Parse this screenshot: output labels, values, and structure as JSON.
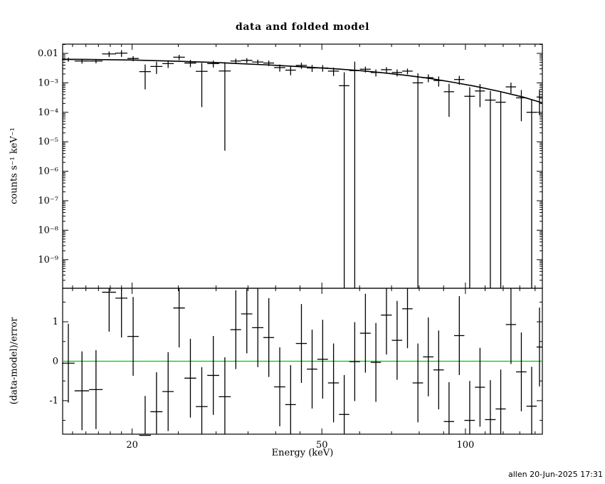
{
  "footer": {
    "timestamp": "allen 20-Jun-2025 17:31"
  },
  "chart_data": {
    "type": "scatter",
    "title": "data and folded model",
    "xlabel": "Energy (keV)",
    "x_ticks_major": [
      20,
      50,
      100
    ],
    "x_tick_labels": [
      "20",
      "50",
      "100"
    ],
    "x_ticks_minor": [
      15,
      16,
      17,
      18,
      19,
      25,
      30,
      35,
      40,
      45,
      60,
      70,
      80,
      90,
      110,
      120,
      130,
      140
    ],
    "xlim": [
      14.3,
      145
    ],
    "grid": false,
    "legend": "none",
    "colors": {
      "data": "#000000",
      "model": "#000000",
      "zero_line": "#00c800"
    },
    "panels": [
      {
        "name": "spectrum",
        "ylabel": "counts s⁻¹ keV⁻¹",
        "xscale": "log",
        "yscale": "log",
        "ylim": [
          1.07e-10,
          0.0206
        ],
        "y_ticks_major": [
          0.01,
          0.001,
          0.0001,
          1e-05,
          1e-06,
          1e-07,
          1e-08,
          1e-09
        ],
        "y_tick_labels": [
          "0.01",
          "10⁻³",
          "10⁻⁴",
          "10⁻⁵",
          "10⁻⁶",
          "10⁻⁷",
          "10⁻⁸",
          "10⁻⁹"
        ],
        "data_points": [
          {
            "e": 14.7,
            "de": 0.45,
            "rate": 0.0062,
            "err": 0.001
          },
          {
            "e": 15.7,
            "de": 0.55,
            "rate": 0.0055,
            "err": 0.001
          },
          {
            "e": 16.8,
            "de": 0.55,
            "rate": 0.0055,
            "err": 0.0009
          },
          {
            "e": 17.9,
            "de": 0.6,
            "rate": 0.0096,
            "err": 0.002
          },
          {
            "e": 19.0,
            "de": 0.55,
            "rate": 0.0102,
            "err": 0.0026
          },
          {
            "e": 20.1,
            "de": 0.55,
            "rate": 0.0067,
            "err": 0.0013
          },
          {
            "e": 21.3,
            "de": 0.6,
            "rate": 0.0024,
            "err": 0.0018
          },
          {
            "e": 22.5,
            "de": 0.65,
            "rate": 0.0036,
            "err": 0.0016
          },
          {
            "e": 23.8,
            "de": 0.65,
            "rate": 0.0045,
            "err": 0.0013
          },
          {
            "e": 25.1,
            "de": 0.7,
            "rate": 0.0074,
            "err": 0.0015
          },
          {
            "e": 26.5,
            "de": 0.75,
            "rate": 0.0047,
            "err": 0.0013
          },
          {
            "e": 28.0,
            "de": 0.8,
            "rate": 0.00245,
            "err": 0.0023
          },
          {
            "e": 29.6,
            "de": 0.85,
            "rate": 0.0045,
            "err": 0.0012
          },
          {
            "e": 31.3,
            "de": 0.9,
            "rate": 0.00252,
            "err": 0.002515
          },
          {
            "e": 33.0,
            "de": 0.85,
            "rate": 0.0055,
            "err": 0.0011
          },
          {
            "e": 34.8,
            "de": 0.95,
            "rate": 0.0058,
            "err": 0.0011
          },
          {
            "e": 36.7,
            "de": 1.0,
            "rate": 0.0051,
            "err": 0.001
          },
          {
            "e": 38.7,
            "de": 1.0,
            "rate": 0.0047,
            "err": 0.001
          },
          {
            "e": 40.8,
            "de": 1.1,
            "rate": 0.0033,
            "err": 0.0009
          },
          {
            "e": 43.0,
            "de": 1.1,
            "rate": 0.0027,
            "err": 0.0009
          },
          {
            "e": 45.3,
            "de": 1.2,
            "rate": 0.0039,
            "err": 0.0009
          },
          {
            "e": 47.7,
            "de": 1.2,
            "rate": 0.0032,
            "err": 0.00085
          },
          {
            "e": 50.2,
            "de": 1.3,
            "rate": 0.0032,
            "err": 0.0008
          },
          {
            "e": 52.9,
            "de": 1.4,
            "rate": 0.0025,
            "err": 0.0008
          },
          {
            "e": 55.7,
            "de": 1.4,
            "rate": 0.0008,
            "err": 0.00148
          },
          {
            "e": 58.6,
            "de": 1.5,
            "rate": 0.0026,
            "err": 0.00262
          },
          {
            "e": 61.7,
            "de": 1.6,
            "rate": 0.0029,
            "err": 0.00065
          },
          {
            "e": 64.9,
            "de": 1.6,
            "rate": 0.00225,
            "err": 0.0006
          },
          {
            "e": 68.3,
            "de": 1.8,
            "rate": 0.0028,
            "err": 0.0006
          },
          {
            "e": 71.9,
            "de": 1.8,
            "rate": 0.00225,
            "err": 0.0006
          },
          {
            "e": 75.6,
            "de": 1.9,
            "rate": 0.0025,
            "err": 0.00055
          },
          {
            "e": 79.5,
            "de": 2.0,
            "rate": 0.001,
            "err": 0.0011
          },
          {
            "e": 83.6,
            "de": 2.1,
            "rate": 0.0015,
            "err": 0.00045
          },
          {
            "e": 87.9,
            "de": 2.2,
            "rate": 0.0012,
            "err": 0.00045
          },
          {
            "e": 92.4,
            "de": 2.3,
            "rate": 0.0005,
            "err": 0.00043
          },
          {
            "e": 97.1,
            "de": 2.4,
            "rate": 0.0013,
            "err": 0.00043
          },
          {
            "e": 102.1,
            "de": 2.6,
            "rate": 0.00035,
            "err": 0.00036
          },
          {
            "e": 107.3,
            "de": 2.6,
            "rate": 0.00053,
            "err": 0.00038
          },
          {
            "e": 112.8,
            "de": 2.9,
            "rate": 0.00026,
            "err": 0.00027
          },
          {
            "e": 118.6,
            "de": 2.9,
            "rate": 0.00022,
            "err": 0.00028
          },
          {
            "e": 124.6,
            "de": 3.1,
            "rate": 0.00073,
            "err": 0.00029
          },
          {
            "e": 131.0,
            "de": 3.3,
            "rate": 0.00031,
            "err": 0.00026
          },
          {
            "e": 137.7,
            "de": 3.4,
            "rate": 0.0001,
            "err": 0.000175
          },
          {
            "e": 143.0,
            "de": 2.0,
            "rate": 0.00033,
            "err": 0.00025
          }
        ],
        "model_curve": {
          "e": [
            14.3,
            16,
            18,
            20,
            23,
            26,
            30,
            34,
            38,
            43,
            48,
            54,
            60,
            67,
            75,
            84,
            94,
            105,
            118,
            132,
            145
          ],
          "value": [
            0.0063,
            0.00625,
            0.0061,
            0.00595,
            0.0056,
            0.0053,
            0.0049,
            0.00445,
            0.0041,
            0.0037,
            0.00333,
            0.00295,
            0.0026,
            0.0022,
            0.0018,
            0.00142,
            0.00105,
            0.00076,
            0.00051,
            0.00033,
            0.00021
          ]
        }
      },
      {
        "name": "residuals",
        "ylabel": "(data-model)/error",
        "xscale": "log",
        "yscale": "linear",
        "ylim": [
          -1.85,
          1.85
        ],
        "y_ticks_major": [
          -1,
          0,
          1
        ],
        "y_tick_labels": [
          "-1",
          "0",
          "1"
        ],
        "point_err": 1.0,
        "values": [
          -0.05,
          -0.75,
          -0.72,
          1.75,
          1.6,
          0.63,
          -1.88,
          -1.28,
          -0.77,
          1.35,
          -0.43,
          -1.15,
          -0.36,
          -0.9,
          0.8,
          1.2,
          0.85,
          0.6,
          -0.65,
          -1.1,
          0.45,
          -0.2,
          0.05,
          -0.55,
          -1.35,
          -0.01,
          0.71,
          -0.03,
          1.17,
          0.53,
          1.33,
          -0.55,
          0.11,
          -0.22,
          -1.53,
          0.65,
          -1.5,
          -0.66,
          -1.48,
          -1.21,
          0.93,
          -0.27,
          -1.14,
          0.36
        ]
      }
    ]
  }
}
